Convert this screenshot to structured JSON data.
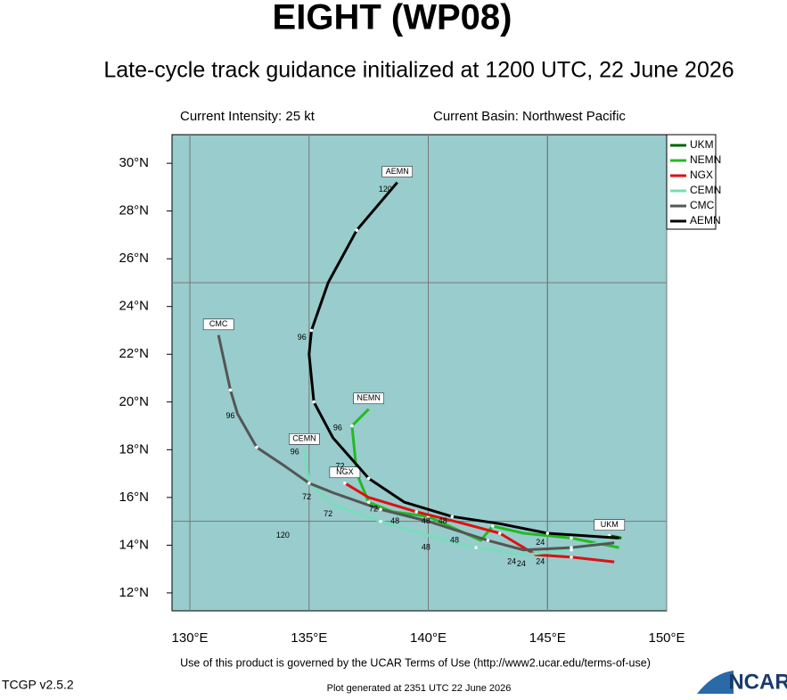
{
  "chart_data": {
    "type": "line",
    "title": "EIGHT (WP08)",
    "subtitle": "Late-cycle track guidance initialized at 1200 UTC, 22 June 2026",
    "annotations": [
      "Current Intensity: 25 kt",
      "Current Basin: Northwest Pacific"
    ],
    "xlim": [
      129.25,
      150
    ],
    "ylim": [
      11.25,
      31.2
    ],
    "xticks": [
      {
        "value": 130,
        "label": "130°E"
      },
      {
        "value": 135,
        "label": "135°E"
      },
      {
        "value": 140,
        "label": "140°E"
      },
      {
        "value": 145,
        "label": "145°E"
      },
      {
        "value": 150,
        "label": "150°E"
      }
    ],
    "yticks": [
      {
        "value": 12,
        "label": "12°N"
      },
      {
        "value": 14,
        "label": "14°N"
      },
      {
        "value": 16,
        "label": "16°N"
      },
      {
        "value": 18,
        "label": "18°N"
      },
      {
        "value": 20,
        "label": "20°N"
      },
      {
        "value": 22,
        "label": "22°N"
      },
      {
        "value": 24,
        "label": "24°N"
      },
      {
        "value": 26,
        "label": "26°N"
      },
      {
        "value": 28,
        "label": "28°N"
      },
      {
        "value": 30,
        "label": "30°N"
      }
    ],
    "grid_lines": [
      {
        "axis": "x",
        "value": 145
      },
      {
        "axis": "y",
        "value": 15
      },
      {
        "axis": "y",
        "value": 25
      }
    ],
    "series": [
      {
        "name": "UKM",
        "color": "#006400",
        "x": [
          148.1,
          147.6
        ],
        "values": [
          14.3,
          14.4
        ]
      },
      {
        "name": "NEMN",
        "color": "#22bb22",
        "x": [
          148.0,
          146.0,
          144.0,
          142.7,
          142.2,
          140.0,
          138.5,
          137.5,
          137.0,
          136.8,
          137.5
        ],
        "values": [
          13.9,
          14.3,
          14.5,
          14.8,
          14.2,
          15.2,
          15.4,
          15.8,
          17.0,
          19.0,
          19.7
        ]
      },
      {
        "name": "NGX",
        "color": "#dd1111",
        "x": [
          147.8,
          146.0,
          144.5,
          143.0,
          141.5,
          139.5,
          137.5,
          136.5
        ],
        "values": [
          13.3,
          13.5,
          13.6,
          14.5,
          14.9,
          15.4,
          16.0,
          16.6
        ]
      },
      {
        "name": "CEMN",
        "color": "#77ddbb",
        "x": [
          147.5,
          146.0,
          144.0,
          142.0,
          140.0,
          138.0,
          136.0,
          135.0,
          134.8
        ],
        "values": [
          14.2,
          13.8,
          13.6,
          13.9,
          14.4,
          15.0,
          15.7,
          16.6,
          18.0
        ]
      },
      {
        "name": "CMC",
        "color": "#555555",
        "x": [
          147.8,
          146.0,
          144.0,
          142.5,
          140.0,
          138.0,
          136.0,
          135.0,
          134.0,
          132.8,
          132.0,
          131.7,
          131.2
        ],
        "values": [
          14.1,
          13.9,
          13.8,
          14.2,
          15.0,
          15.5,
          16.2,
          16.6,
          17.3,
          18.1,
          19.5,
          20.5,
          22.8
        ]
      },
      {
        "name": "AEMN",
        "color": "#000000",
        "x": [
          148.0,
          145.0,
          143.0,
          141.0,
          139.0,
          137.5,
          136.0,
          135.2,
          135.0,
          135.1,
          135.8,
          137.0,
          138.7
        ],
        "values": [
          14.3,
          14.5,
          14.9,
          15.2,
          15.8,
          16.8,
          18.5,
          20.0,
          22.0,
          23.0,
          25.0,
          27.2,
          29.2
        ]
      }
    ],
    "hour_labels": [
      {
        "text": "120",
        "lon": 138.2,
        "lat": 28.9
      },
      {
        "text": "96",
        "lon": 134.7,
        "lat": 22.7
      },
      {
        "text": "96",
        "lon": 131.7,
        "lat": 19.4
      },
      {
        "text": "96",
        "lon": 136.2,
        "lat": 18.9
      },
      {
        "text": "96",
        "lon": 134.4,
        "lat": 17.9
      },
      {
        "text": "72",
        "lon": 136.3,
        "lat": 17.3
      },
      {
        "text": "72",
        "lon": 134.9,
        "lat": 16.0
      },
      {
        "text": "72",
        "lon": 135.8,
        "lat": 15.3
      },
      {
        "text": "72",
        "lon": 137.7,
        "lat": 15.5
      },
      {
        "text": "120",
        "lon": 133.9,
        "lat": 14.4
      },
      {
        "text": "48",
        "lon": 138.6,
        "lat": 15.0
      },
      {
        "text": "48",
        "lon": 139.9,
        "lat": 15.0
      },
      {
        "text": "48",
        "lon": 140.6,
        "lat": 15.0
      },
      {
        "text": "48",
        "lon": 141.1,
        "lat": 14.2
      },
      {
        "text": "48",
        "lon": 139.9,
        "lat": 13.9
      },
      {
        "text": "24",
        "lon": 144.7,
        "lat": 14.1
      },
      {
        "text": "24",
        "lon": 143.5,
        "lat": 13.3
      },
      {
        "text": "24",
        "lon": 143.9,
        "lat": 13.2
      },
      {
        "text": "24",
        "lon": 144.7,
        "lat": 13.3
      }
    ],
    "footer": "Use of this product is governed by the UCAR Terms of Use (http://www2.ucar.edu/terms-of-use)",
    "version": "TCGP v2.5.2",
    "generated": "Plot generated at 2351 UTC   22 June 2026",
    "logo": "NCAR"
  }
}
